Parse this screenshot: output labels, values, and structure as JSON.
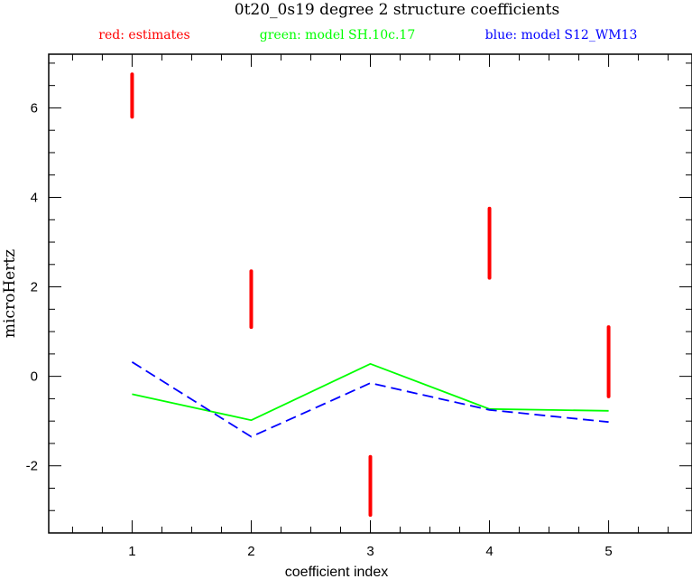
{
  "chart_data": {
    "type": "line",
    "title": "0t20_0s19 degree 2 structure coefficients",
    "xlabel": "coefficient index",
    "ylabel": "microHertz",
    "xlim": [
      0.3,
      5.7
    ],
    "ylim": [
      -3.5,
      7.2
    ],
    "x_ticks": [
      1,
      2,
      3,
      4,
      5
    ],
    "x_tick_labels": [
      "1",
      "2",
      "3",
      "4",
      "5"
    ],
    "y_ticks": [
      -2,
      0,
      2,
      4,
      6
    ],
    "y_tick_labels": [
      "-2",
      "0",
      "2",
      "4",
      "6"
    ],
    "x_minor_step": 0.25,
    "y_minor_step": 0.5,
    "legend_placement": "top",
    "legend": [
      {
        "text": "red: estimates",
        "color": "#ff0000"
      },
      {
        "text": "green: model SH.10c.17",
        "color": "#00ff00"
      },
      {
        "text": "blue: model S12_WM13",
        "color": "#0000ff"
      }
    ],
    "estimates": {
      "name": "red: estimates",
      "color": "#ff0000",
      "x": [
        1,
        2,
        3,
        4,
        5
      ],
      "low": [
        5.8,
        1.1,
        -3.1,
        2.2,
        -0.45
      ],
      "high": [
        6.75,
        2.35,
        -1.8,
        3.75,
        1.1
      ]
    },
    "series": [
      {
        "name": "green: model SH.10c.17",
        "color": "#00ff00",
        "style": "solid",
        "x": [
          1,
          2,
          3,
          4,
          5
        ],
        "values": [
          -0.4,
          -0.98,
          0.28,
          -0.73,
          -0.77
        ]
      },
      {
        "name": "blue: model S12_WM13",
        "color": "#0000ff",
        "style": "dashed",
        "x": [
          1,
          2,
          3,
          4,
          5
        ],
        "values": [
          0.32,
          -1.35,
          -0.15,
          -0.75,
          -1.02
        ]
      }
    ]
  }
}
